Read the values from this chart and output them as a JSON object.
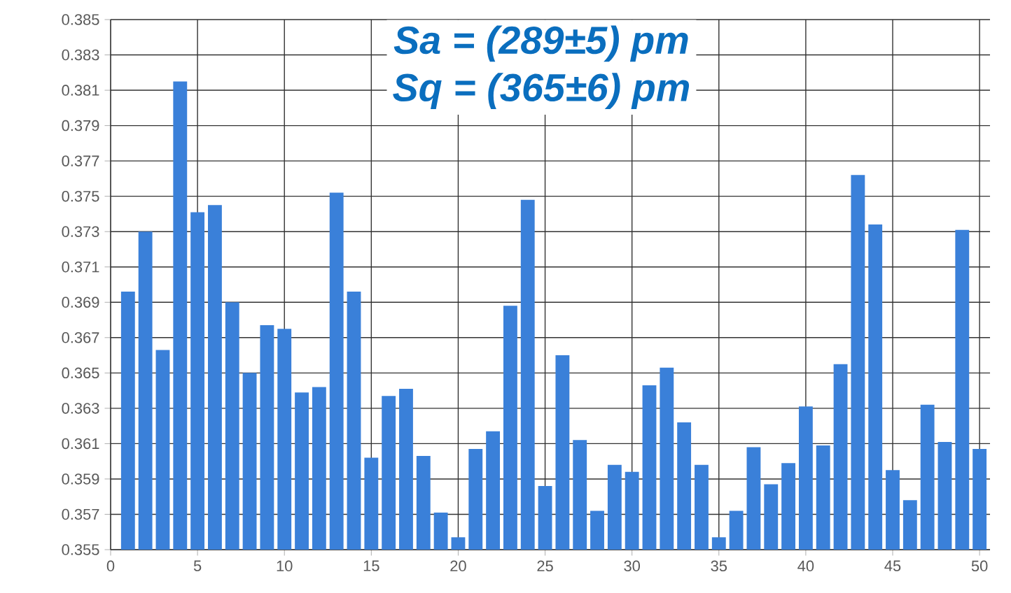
{
  "chart_data": {
    "type": "bar",
    "x": [
      1,
      2,
      3,
      4,
      5,
      6,
      7,
      8,
      9,
      10,
      11,
      12,
      13,
      14,
      15,
      16,
      17,
      18,
      19,
      20,
      21,
      22,
      23,
      24,
      25,
      26,
      27,
      28,
      29,
      30,
      31,
      32,
      33,
      34,
      35,
      36,
      37,
      38,
      39,
      40,
      41,
      42,
      43,
      44,
      45,
      46,
      47,
      48,
      49,
      50
    ],
    "values": [
      0.3696,
      0.373,
      0.3663,
      0.3815,
      0.3741,
      0.3745,
      0.369,
      0.365,
      0.3677,
      0.3675,
      0.3639,
      0.3642,
      0.3752,
      0.3696,
      0.3602,
      0.3637,
      0.3641,
      0.3603,
      0.3571,
      0.3557,
      0.3607,
      0.3617,
      0.3688,
      0.3748,
      0.3586,
      0.366,
      0.3612,
      0.3572,
      0.3598,
      0.3594,
      0.3643,
      0.3653,
      0.3622,
      0.3598,
      0.3557,
      0.3572,
      0.3608,
      0.3587,
      0.3599,
      0.3631,
      0.3609,
      0.3655,
      0.3762,
      0.3734,
      0.3595,
      0.3578,
      0.3632,
      0.3611,
      0.3731,
      0.3607
    ],
    "color": "#3a80d9",
    "xlim": [
      0,
      50.6
    ],
    "xticks": [
      0,
      5,
      10,
      15,
      20,
      25,
      30,
      35,
      40,
      45,
      50
    ],
    "ylim": [
      0.355,
      0.385
    ],
    "yticks": [
      0.355,
      0.357,
      0.359,
      0.361,
      0.363,
      0.365,
      0.367,
      0.369,
      0.371,
      0.373,
      0.375,
      0.377,
      0.379,
      0.381,
      0.383,
      0.385
    ],
    "grid": true,
    "annotations": [
      "Sa = (289±5) pm",
      "Sq = (365±6) pm"
    ]
  }
}
